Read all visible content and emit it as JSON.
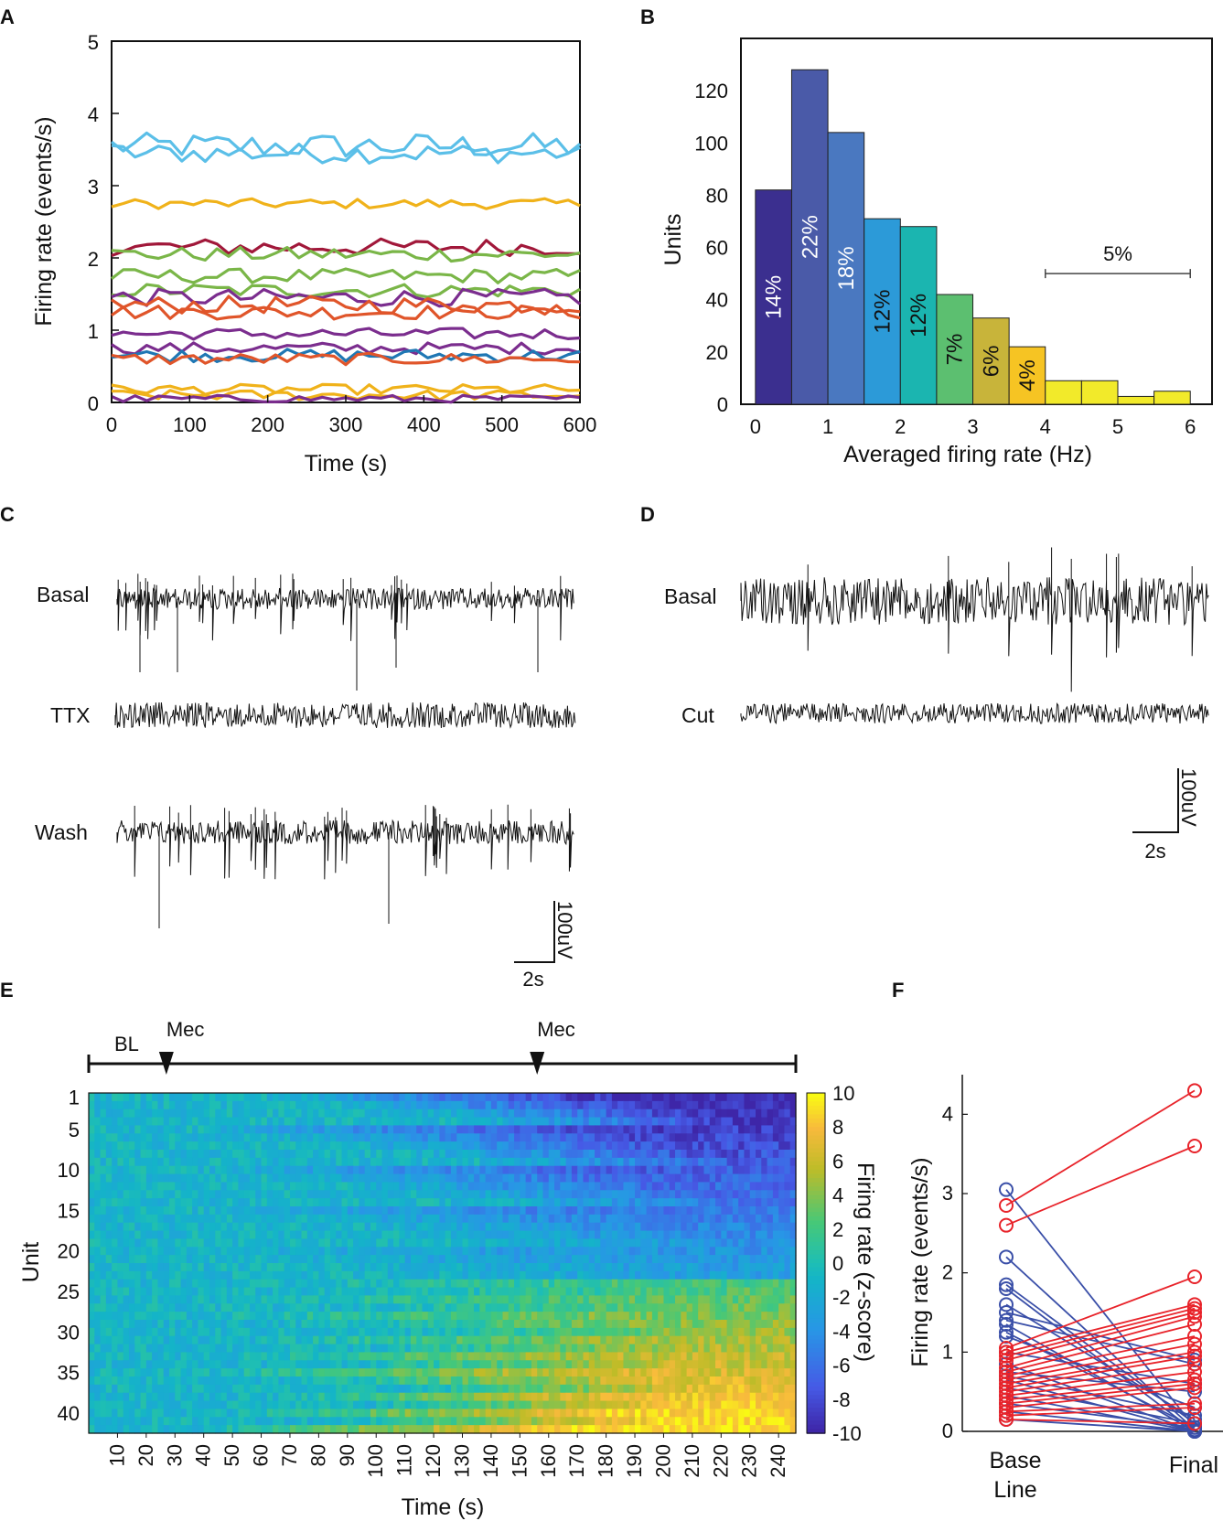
{
  "panel_labels": [
    "A",
    "B",
    "C",
    "D",
    "E",
    "F"
  ],
  "chart_data": [
    {
      "panel": "A",
      "type": "line",
      "xlabel": "Time (s)",
      "ylabel": "Firing rate (events/s)",
      "xlim": [
        0,
        600
      ],
      "ylim": [
        0,
        5
      ],
      "xticks": [
        0,
        100,
        200,
        300,
        400,
        500,
        600
      ],
      "yticks": [
        0,
        1,
        2,
        3,
        4,
        5
      ],
      "x_step": 15,
      "series": [
        {
          "color": "#5bbfe8",
          "base": 3.55,
          "jitter": 0.18
        },
        {
          "color": "#5bbfe8",
          "base": 3.45,
          "jitter": 0.14
        },
        {
          "color": "#f0b21a",
          "base": 2.75,
          "jitter": 0.07
        },
        {
          "color": "#a1183a",
          "base": 2.15,
          "jitter": 0.12
        },
        {
          "color": "#7ab648",
          "base": 2.05,
          "jitter": 0.1
        },
        {
          "color": "#7ab648",
          "base": 1.75,
          "jitter": 0.1
        },
        {
          "color": "#7ab648",
          "base": 1.55,
          "jitter": 0.1
        },
        {
          "color": "#7b2d8e",
          "base": 1.45,
          "jitter": 0.12
        },
        {
          "color": "#e0552a",
          "base": 1.35,
          "jitter": 0.12
        },
        {
          "color": "#e0552a",
          "base": 1.25,
          "jitter": 0.1
        },
        {
          "color": "#7b2d8e",
          "base": 0.95,
          "jitter": 0.08
        },
        {
          "color": "#7b2d8e",
          "base": 0.75,
          "jitter": 0.08
        },
        {
          "color": "#1f77b4",
          "base": 0.65,
          "jitter": 0.09
        },
        {
          "color": "#e0552a",
          "base": 0.6,
          "jitter": 0.08
        },
        {
          "color": "#f0b21a",
          "base": 0.18,
          "jitter": 0.07
        },
        {
          "color": "#f0b21a",
          "base": 0.1,
          "jitter": 0.07
        },
        {
          "color": "#7b2d8e",
          "base": 0.05,
          "jitter": 0.05
        }
      ]
    },
    {
      "panel": "B",
      "type": "bar",
      "xlabel": "Averaged firing rate (Hz)",
      "ylabel": "Units",
      "xlim": [
        -0.2,
        6.3
      ],
      "ylim": [
        0,
        140
      ],
      "xticks": [
        0,
        1,
        2,
        3,
        4,
        5,
        6
      ],
      "yticks": [
        0,
        20,
        40,
        60,
        80,
        100,
        120
      ],
      "bin_width": 0.5,
      "bins": [
        {
          "x0": 0.0,
          "value": 82,
          "label": "14%",
          "color": "#3b2f8f",
          "label_color": "#ffffff"
        },
        {
          "x0": 0.5,
          "value": 128,
          "label": "22%",
          "color": "#4a5aa8",
          "label_color": "#ffffff"
        },
        {
          "x0": 1.0,
          "value": 104,
          "label": "18%",
          "color": "#4a78c0",
          "label_color": "#ffffff"
        },
        {
          "x0": 1.5,
          "value": 71,
          "label": "12%",
          "color": "#2c9ad8",
          "label_color": "#111111"
        },
        {
          "x0": 2.0,
          "value": 68,
          "label": "12%",
          "color": "#1bb5b0",
          "label_color": "#111111"
        },
        {
          "x0": 2.5,
          "value": 42,
          "label": "7%",
          "color": "#5cbf70",
          "label_color": "#111111"
        },
        {
          "x0": 3.0,
          "value": 33,
          "label": "6%",
          "color": "#c8b43a",
          "label_color": "#111111"
        },
        {
          "x0": 3.5,
          "value": 22,
          "label": "4%",
          "color": "#f6c423",
          "label_color": "#111111"
        },
        {
          "x0": 4.0,
          "value": 9,
          "label": "",
          "color": "#f2ea2a",
          "label_color": "#111111"
        },
        {
          "x0": 4.5,
          "value": 9,
          "label": "",
          "color": "#f2ea2a",
          "label_color": "#111111"
        },
        {
          "x0": 5.0,
          "value": 3,
          "label": "",
          "color": "#f2ea2a",
          "label_color": "#111111"
        },
        {
          "x0": 5.5,
          "value": 5,
          "label": "",
          "color": "#f2ea2a",
          "label_color": "#111111"
        }
      ],
      "bracket": {
        "from": 4.0,
        "to": 6.0,
        "value": 50,
        "label": "5%"
      }
    },
    {
      "panel": "C",
      "type": "line",
      "traces": [
        "Basal",
        "TTX",
        "Wash"
      ],
      "scale_bar": {
        "vertical": "100uV",
        "horizontal": "2s"
      }
    },
    {
      "panel": "D",
      "type": "line",
      "traces": [
        "Basal",
        "Cut"
      ],
      "scale_bar": {
        "vertical": "100uV",
        "horizontal": "2s"
      }
    },
    {
      "panel": "E",
      "type": "heatmap",
      "xlabel": "Time (s)",
      "ylabel": "Unit",
      "xticks": [
        10,
        20,
        30,
        40,
        50,
        60,
        70,
        80,
        90,
        100,
        110,
        120,
        130,
        140,
        150,
        160,
        170,
        180,
        190,
        200,
        210,
        220,
        230,
        240
      ],
      "xlim": [
        0,
        246
      ],
      "yticks": [
        1,
        5,
        10,
        15,
        20,
        25,
        30,
        35,
        40
      ],
      "units": 42,
      "colorbar": {
        "label": "Firing rate (z-score)",
        "range": [
          -10,
          10
        ],
        "ticks": [
          10,
          8,
          6,
          4,
          2,
          0,
          -2,
          -4,
          -6,
          -8,
          -10
        ]
      },
      "events": [
        {
          "label": "BL",
          "time": 0
        },
        {
          "label": "Mec",
          "time": 27
        },
        {
          "label": "Mec",
          "time": 156
        }
      ]
    },
    {
      "panel": "F",
      "type": "line",
      "ylabel": "Firing rate (events/s)",
      "categories": [
        "Base Line",
        "Final"
      ],
      "category_lines": [
        [
          "Base",
          "Line"
        ],
        [
          "Final"
        ]
      ],
      "ylim": [
        0,
        4.5
      ],
      "yticks": [
        0,
        1,
        2,
        3,
        4
      ],
      "increase_color": "#e8232a",
      "decrease_color": "#3a4fa8",
      "increased": [
        [
          2.85,
          4.3
        ],
        [
          2.6,
          3.6
        ],
        [
          1.05,
          1.95
        ],
        [
          1.0,
          1.6
        ],
        [
          0.95,
          1.55
        ],
        [
          0.9,
          1.5
        ],
        [
          0.8,
          1.45
        ],
        [
          0.75,
          1.35
        ],
        [
          0.7,
          1.2
        ],
        [
          0.65,
          1.1
        ],
        [
          0.6,
          1.0
        ],
        [
          0.55,
          0.95
        ],
        [
          0.5,
          0.85
        ],
        [
          0.45,
          0.75
        ],
        [
          0.4,
          0.65
        ],
        [
          0.35,
          0.6
        ],
        [
          0.3,
          0.55
        ],
        [
          0.25,
          0.35
        ],
        [
          0.2,
          0.3
        ],
        [
          0.15,
          0.1
        ]
      ],
      "decreased": [
        [
          3.05,
          0.05
        ],
        [
          2.2,
          0.02
        ],
        [
          1.85,
          0.1
        ],
        [
          1.8,
          0.0
        ],
        [
          1.6,
          0.15
        ],
        [
          1.5,
          0.9
        ],
        [
          1.4,
          0.85
        ],
        [
          1.35,
          0.0
        ],
        [
          1.25,
          0.05
        ],
        [
          1.2,
          0.3
        ],
        [
          1.0,
          0.6
        ],
        [
          0.85,
          0.0
        ],
        [
          0.75,
          0.5
        ],
        [
          0.7,
          0.2
        ],
        [
          0.65,
          0.0
        ],
        [
          0.55,
          0.1
        ],
        [
          0.45,
          0.0
        ],
        [
          0.35,
          0.05
        ],
        [
          0.25,
          0.0
        ],
        [
          0.15,
          0.0
        ]
      ]
    }
  ]
}
